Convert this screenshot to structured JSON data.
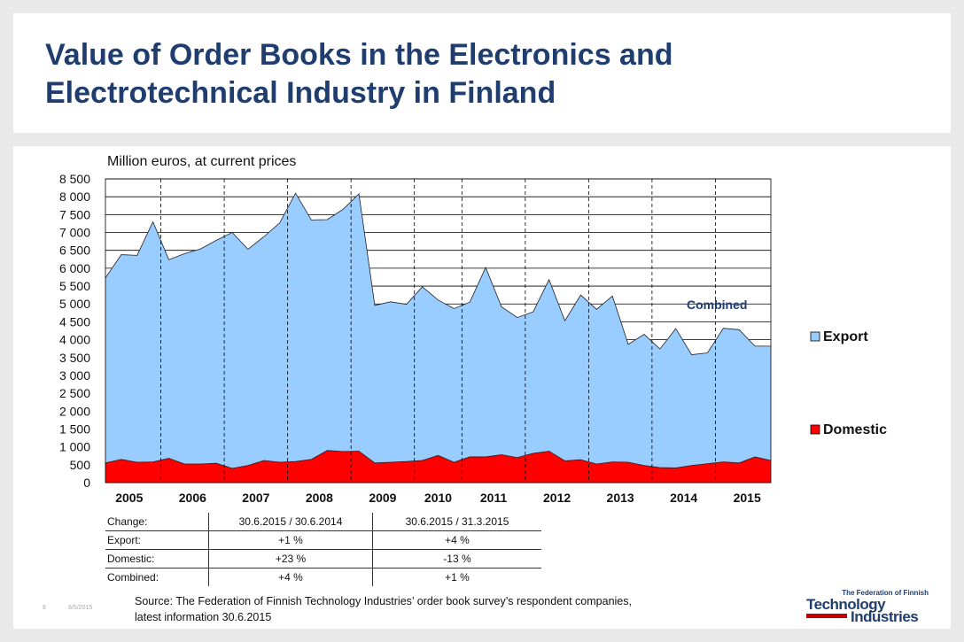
{
  "title": "Value of Order Books in the Electronics and Electrotechnical Industry in Finland",
  "unit_label": "Million euros, at current prices",
  "chart_data": {
    "type": "area",
    "stacked": true,
    "ylim": [
      0,
      8500
    ],
    "y_ticks": [
      0,
      500,
      1000,
      1500,
      2000,
      2500,
      3000,
      3500,
      4000,
      4500,
      5000,
      5500,
      6000,
      6500,
      7000,
      7500,
      8000,
      8500
    ],
    "y_tick_labels": [
      "0",
      "500",
      "1 000",
      "1 500",
      "2 000",
      "2 500",
      "3 000",
      "3 500",
      "4 000",
      "4 500",
      "5 000",
      "5 500",
      "6 000",
      "6 500",
      "7 000",
      "7 500",
      "8 000",
      "8 500"
    ],
    "year_labels": [
      "2005",
      "2006",
      "2007",
      "2008",
      "2009",
      "2010",
      "2011",
      "2012",
      "2013",
      "2014",
      "2015"
    ],
    "year_start_quarter_index": [
      0,
      4,
      8,
      12,
      16,
      20,
      23,
      27,
      31,
      35,
      39
    ],
    "grid": "horizontal solid, vertical dashed at year boundaries",
    "legend_position": "right",
    "series": [
      {
        "name": "Domestic",
        "color": "#ff0000",
        "values": [
          550,
          650,
          570,
          580,
          680,
          520,
          520,
          540,
          400,
          480,
          620,
          570,
          590,
          650,
          900,
          870,
          880,
          550,
          570,
          590,
          620,
          760,
          570,
          720,
          720,
          780,
          700,
          820,
          880,
          610,
          640,
          520,
          580,
          570,
          480,
          420,
          410,
          480,
          530,
          580,
          550,
          720,
          620
        ]
      },
      {
        "name": "Export",
        "color": "#99ccff",
        "values": [
          5180,
          5730,
          5790,
          6720,
          5560,
          5890,
          6020,
          6240,
          6600,
          6050,
          6260,
          6700,
          7510,
          6700,
          6460,
          6780,
          7200,
          4410,
          4490,
          4400,
          4860,
          4350,
          4300,
          4330,
          5300,
          4140,
          3920,
          3960,
          4800,
          3920,
          4610,
          4330,
          4640,
          3300,
          3670,
          3320,
          3900,
          3100,
          3100,
          3740,
          3730,
          3100,
          3200
        ]
      }
    ],
    "annotation": "Combined"
  },
  "table": {
    "header": [
      "Change:",
      "30.6.2015 / 30.6.2014",
      "30.6.2015 / 31.3.2015"
    ],
    "rows": [
      [
        "Export:",
        "+1 %",
        "+4 %"
      ],
      [
        "Domestic:",
        "+23 %",
        "-13 %"
      ],
      [
        "Combined:",
        "+4 %",
        "+1 %"
      ]
    ]
  },
  "source_line1": "Source: The Federation of Finnish Technology Industries’ order book survey’s respondent companies,",
  "source_line2": "latest information 30.6.2015",
  "footer": {
    "page": "8",
    "date": "8/5/2015"
  },
  "logo": {
    "line1": "The Federation of Finnish",
    "line2": "Technology",
    "line3": "Industries"
  }
}
